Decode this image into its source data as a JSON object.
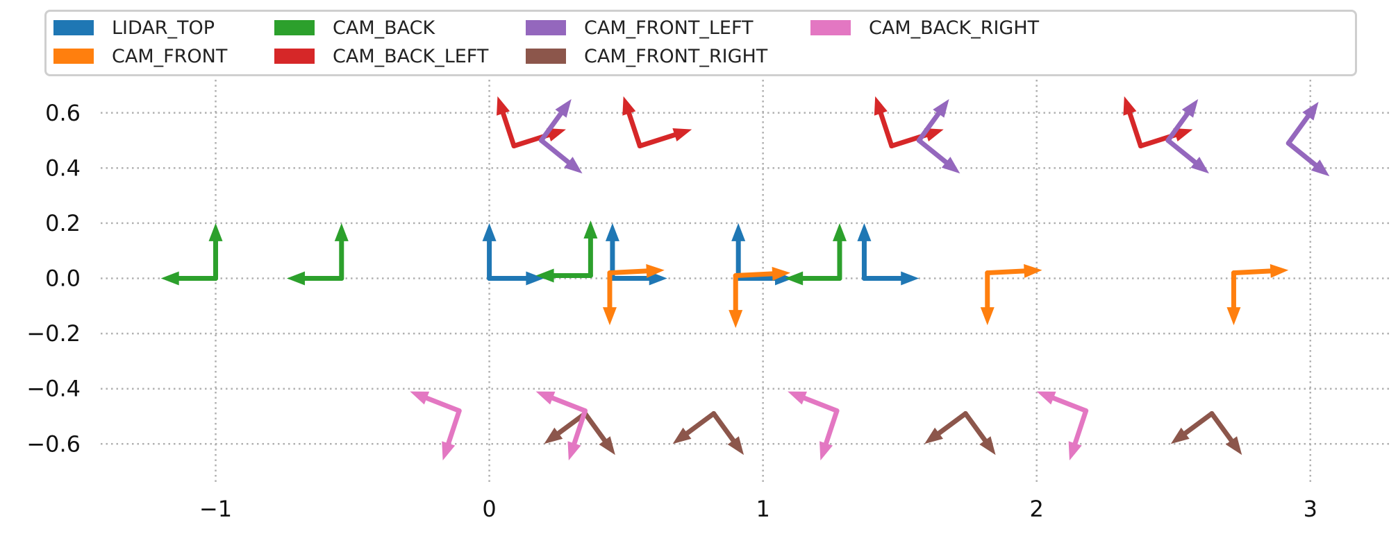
{
  "chart_data": {
    "type": "quiver",
    "title": "",
    "xlabel": "",
    "ylabel": "",
    "xlim": [
      -1.42,
      3.3
    ],
    "ylim": [
      -0.74,
      0.72
    ],
    "x_ticks": [
      -1,
      0,
      1,
      2,
      3
    ],
    "y_ticks": [
      -0.6,
      -0.4,
      -0.2,
      0.0,
      0.2,
      0.4,
      0.6
    ],
    "x_tick_labels": [
      "−1",
      "0",
      "1",
      "2",
      "3"
    ],
    "y_tick_labels": [
      "−0.6",
      "−0.4",
      "−0.2",
      "0.0",
      "0.2",
      "0.4",
      "0.6"
    ],
    "grid": true,
    "legend_position": "top",
    "series": [
      {
        "name": "LIDAR_TOP",
        "color": "#1f77b4",
        "frames": [
          {
            "origin": [
              0.0,
              0.0
            ],
            "axes": [
              [
                0.2,
                0.0
              ],
              [
                0.0,
                0.2
              ]
            ]
          },
          {
            "origin": [
              0.45,
              0.0
            ],
            "axes": [
              [
                0.2,
                0.0
              ],
              [
                0.0,
                0.2
              ]
            ]
          },
          {
            "origin": [
              0.91,
              0.0
            ],
            "axes": [
              [
                0.2,
                0.0
              ],
              [
                0.0,
                0.2
              ]
            ]
          },
          {
            "origin": [
              1.37,
              0.0
            ],
            "axes": [
              [
                0.2,
                0.0
              ],
              [
                0.0,
                0.2
              ]
            ]
          }
        ]
      },
      {
        "name": "CAM_FRONT",
        "color": "#ff7f0e",
        "frames": [
          {
            "origin": [
              0.44,
              0.02
            ],
            "axes": [
              [
                0.2,
                0.01
              ],
              [
                0.0,
                -0.19
              ]
            ]
          },
          {
            "origin": [
              0.9,
              0.01
            ],
            "axes": [
              [
                0.2,
                0.01
              ],
              [
                0.0,
                -0.19
              ]
            ]
          },
          {
            "origin": [
              1.82,
              0.02
            ],
            "axes": [
              [
                0.2,
                0.01
              ],
              [
                0.0,
                -0.19
              ]
            ]
          },
          {
            "origin": [
              2.72,
              0.02
            ],
            "axes": [
              [
                0.2,
                0.01
              ],
              [
                0.0,
                -0.19
              ]
            ]
          }
        ]
      },
      {
        "name": "CAM_BACK",
        "color": "#2ca02c",
        "frames": [
          {
            "origin": [
              -1.0,
              0.0
            ],
            "axes": [
              [
                -0.2,
                0.0
              ],
              [
                0.0,
                0.2
              ]
            ]
          },
          {
            "origin": [
              -0.54,
              0.0
            ],
            "axes": [
              [
                -0.2,
                0.0
              ],
              [
                0.0,
                0.2
              ]
            ]
          },
          {
            "origin": [
              0.37,
              0.01
            ],
            "axes": [
              [
                -0.2,
                0.0
              ],
              [
                0.0,
                0.2
              ]
            ]
          },
          {
            "origin": [
              1.28,
              0.0
            ],
            "axes": [
              [
                -0.2,
                0.0
              ],
              [
                0.0,
                0.2
              ]
            ]
          }
        ]
      },
      {
        "name": "CAM_BACK_LEFT",
        "color": "#d62728",
        "frames": [
          {
            "origin": [
              0.09,
              0.48
            ],
            "axes": [
              [
                0.19,
                0.06
              ],
              [
                -0.06,
                0.18
              ]
            ]
          },
          {
            "origin": [
              0.55,
              0.48
            ],
            "axes": [
              [
                0.19,
                0.06
              ],
              [
                -0.06,
                0.18
              ]
            ]
          },
          {
            "origin": [
              1.47,
              0.48
            ],
            "axes": [
              [
                0.19,
                0.06
              ],
              [
                -0.06,
                0.18
              ]
            ]
          },
          {
            "origin": [
              2.38,
              0.48
            ],
            "axes": [
              [
                0.19,
                0.06
              ],
              [
                -0.06,
                0.18
              ]
            ]
          }
        ]
      },
      {
        "name": "CAM_FRONT_LEFT",
        "color": "#9467bd",
        "frames": [
          {
            "origin": [
              0.19,
              0.5
            ],
            "axes": [
              [
                0.15,
                -0.12
              ],
              [
                0.11,
                0.15
              ]
            ]
          },
          {
            "origin": [
              1.57,
              0.5
            ],
            "axes": [
              [
                0.15,
                -0.12
              ],
              [
                0.11,
                0.15
              ]
            ]
          },
          {
            "origin": [
              2.48,
              0.5
            ],
            "axes": [
              [
                0.15,
                -0.12
              ],
              [
                0.11,
                0.15
              ]
            ]
          },
          {
            "origin": [
              2.92,
              0.49
            ],
            "axes": [
              [
                0.15,
                -0.12
              ],
              [
                0.11,
                0.15
              ]
            ]
          }
        ]
      },
      {
        "name": "CAM_FRONT_RIGHT",
        "color": "#8c564b",
        "frames": [
          {
            "origin": [
              0.35,
              -0.49
            ],
            "axes": [
              [
                0.11,
                -0.15
              ],
              [
                -0.15,
                -0.11
              ]
            ]
          },
          {
            "origin": [
              0.82,
              -0.49
            ],
            "axes": [
              [
                0.11,
                -0.15
              ],
              [
                -0.15,
                -0.11
              ]
            ]
          },
          {
            "origin": [
              1.74,
              -0.49
            ],
            "axes": [
              [
                0.11,
                -0.15
              ],
              [
                -0.15,
                -0.11
              ]
            ]
          },
          {
            "origin": [
              2.64,
              -0.49
            ],
            "axes": [
              [
                0.11,
                -0.15
              ],
              [
                -0.15,
                -0.11
              ]
            ]
          }
        ]
      },
      {
        "name": "CAM_BACK_RIGHT",
        "color": "#e377c2",
        "frames": [
          {
            "origin": [
              -0.11,
              -0.48
            ],
            "axes": [
              [
                -0.18,
                0.07
              ],
              [
                -0.06,
                -0.18
              ]
            ]
          },
          {
            "origin": [
              0.35,
              -0.48
            ],
            "axes": [
              [
                -0.18,
                0.07
              ],
              [
                -0.06,
                -0.18
              ]
            ]
          },
          {
            "origin": [
              1.27,
              -0.48
            ],
            "axes": [
              [
                -0.18,
                0.07
              ],
              [
                -0.06,
                -0.18
              ]
            ]
          },
          {
            "origin": [
              2.18,
              -0.48
            ],
            "axes": [
              [
                -0.18,
                0.07
              ],
              [
                -0.06,
                -0.18
              ]
            ]
          }
        ]
      }
    ]
  }
}
